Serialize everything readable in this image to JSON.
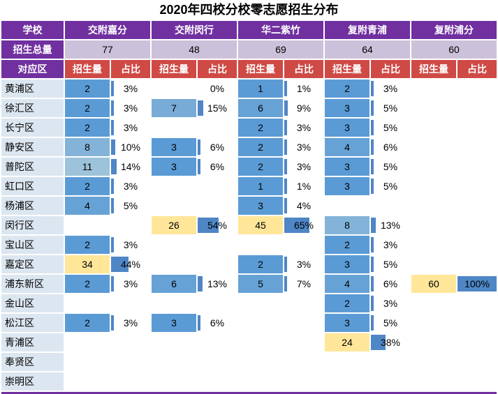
{
  "chart_data": {
    "type": "table",
    "title": "2020年四校分校零志愿招生分布",
    "labels": {
      "school": "学校",
      "total": "招生总量",
      "district": "对应区",
      "count": "招生量",
      "share": "占比"
    },
    "schools": [
      {
        "name": "交附嘉分",
        "total": 77
      },
      {
        "name": "交附闵行",
        "total": 48
      },
      {
        "name": "华二紫竹",
        "total": 69
      },
      {
        "name": "复附青浦",
        "total": 64
      },
      {
        "name": "复附浦分",
        "total": 60
      }
    ],
    "districts": [
      "黄浦区",
      "徐汇区",
      "长宁区",
      "静安区",
      "普陀区",
      "虹口区",
      "杨浦区",
      "闵行区",
      "宝山区",
      "嘉定区",
      "浦东新区",
      "金山区",
      "松江区",
      "青浦区",
      "奉贤区",
      "崇明区"
    ],
    "rows": [
      {
        "district": "黄浦区",
        "values": [
          [
            2,
            3
          ],
          [
            null,
            0
          ],
          [
            1,
            1
          ],
          [
            2,
            3
          ],
          [
            null,
            null
          ]
        ]
      },
      {
        "district": "徐汇区",
        "values": [
          [
            2,
            3
          ],
          [
            7,
            15
          ],
          [
            6,
            9
          ],
          [
            3,
            5
          ],
          [
            null,
            null
          ]
        ]
      },
      {
        "district": "长宁区",
        "values": [
          [
            2,
            3
          ],
          [
            null,
            null
          ],
          [
            2,
            3
          ],
          [
            3,
            5
          ],
          [
            null,
            null
          ]
        ]
      },
      {
        "district": "静安区",
        "values": [
          [
            8,
            10
          ],
          [
            3,
            6
          ],
          [
            2,
            3
          ],
          [
            4,
            6
          ],
          [
            null,
            null
          ]
        ]
      },
      {
        "district": "普陀区",
        "values": [
          [
            11,
            14
          ],
          [
            3,
            6
          ],
          [
            2,
            3
          ],
          [
            3,
            5
          ],
          [
            null,
            null
          ]
        ]
      },
      {
        "district": "虹口区",
        "values": [
          [
            2,
            3
          ],
          [
            null,
            null
          ],
          [
            1,
            1
          ],
          [
            3,
            5
          ],
          [
            null,
            null
          ]
        ]
      },
      {
        "district": "杨浦区",
        "values": [
          [
            4,
            5
          ],
          [
            null,
            null
          ],
          [
            3,
            4
          ],
          [
            null,
            null
          ],
          [
            null,
            null
          ]
        ]
      },
      {
        "district": "闵行区",
        "values": [
          [
            null,
            null
          ],
          [
            26,
            54
          ],
          [
            45,
            65
          ],
          [
            8,
            13
          ],
          [
            null,
            null
          ]
        ]
      },
      {
        "district": "宝山区",
        "values": [
          [
            2,
            3
          ],
          [
            null,
            null
          ],
          [
            null,
            null
          ],
          [
            2,
            3
          ],
          [
            null,
            null
          ]
        ]
      },
      {
        "district": "嘉定区",
        "values": [
          [
            34,
            44
          ],
          [
            null,
            null
          ],
          [
            2,
            3
          ],
          [
            3,
            5
          ],
          [
            null,
            null
          ]
        ]
      },
      {
        "district": "浦东新区",
        "values": [
          [
            2,
            3
          ],
          [
            6,
            13
          ],
          [
            5,
            7
          ],
          [
            4,
            6
          ],
          [
            60,
            100
          ]
        ]
      },
      {
        "district": "金山区",
        "values": [
          [
            null,
            null
          ],
          [
            null,
            null
          ],
          [
            null,
            null
          ],
          [
            2,
            3
          ],
          [
            null,
            null
          ]
        ]
      },
      {
        "district": "松江区",
        "values": [
          [
            2,
            3
          ],
          [
            3,
            6
          ],
          [
            null,
            null
          ],
          [
            3,
            5
          ],
          [
            null,
            null
          ]
        ]
      },
      {
        "district": "青浦区",
        "values": [
          [
            null,
            null
          ],
          [
            null,
            null
          ],
          [
            null,
            null
          ],
          [
            24,
            38
          ],
          [
            null,
            null
          ]
        ]
      },
      {
        "district": "奉贤区",
        "values": [
          [
            null,
            null
          ],
          [
            null,
            null
          ],
          [
            null,
            null
          ],
          [
            null,
            null
          ],
          [
            null,
            null
          ]
        ]
      },
      {
        "district": "崇明区",
        "values": [
          [
            null,
            null
          ],
          [
            null,
            null
          ],
          [
            null,
            null
          ],
          [
            null,
            null
          ],
          [
            null,
            null
          ]
        ]
      }
    ],
    "colors": {
      "header_purple": "#7030a0",
      "subheader_red": "#cf4a45",
      "total_bg": "#ccc1da",
      "district_bg": "#dce6f1",
      "share_bar_blue": "#4f86c6",
      "count_scale": [
        {
          "min": 24,
          "color": "#ffe699"
        },
        {
          "min": 11,
          "color": "#9cc3d9"
        },
        {
          "min": 8,
          "color": "#83b3d8"
        },
        {
          "min": 7,
          "color": "#78abd6"
        },
        {
          "min": 4,
          "color": "#66a2d5"
        },
        {
          "min": 0,
          "color": "#5b9bd5"
        }
      ]
    }
  }
}
